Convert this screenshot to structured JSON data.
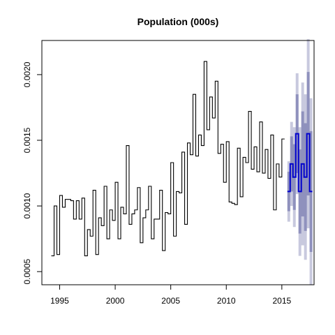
{
  "chart_data": {
    "type": "line",
    "title": "Population (000s)",
    "xlabel": "",
    "ylabel": "",
    "xlim": [
      1993.4,
      2017.9
    ],
    "ylim": [
      0.0004,
      0.00226
    ],
    "x_ticks": [
      1995,
      2000,
      2005,
      2010,
      2015
    ],
    "x_tick_labels": [
      "1995",
      "2000",
      "2005",
      "2010",
      "2015"
    ],
    "y_ticks": [
      0.0005,
      0.001,
      0.0015,
      0.002
    ],
    "y_tick_labels": [
      "0.0005",
      "0.0010",
      "0.0015",
      "0.0020"
    ],
    "grid": false,
    "legend": "none",
    "colors": {
      "history": "#000000",
      "forecast": "#0000cd",
      "band80": "#8f91bd",
      "band95": "#c8c9de"
    },
    "history": {
      "start_year": 1994.25,
      "step_years": 0.25,
      "values": [
        0.00062,
        0.001,
        0.00063,
        0.00108,
        0.00099,
        0.00105,
        0.00105,
        0.00104,
        0.0009,
        0.00104,
        0.0009,
        0.00106,
        0.00062,
        0.00082,
        0.00077,
        0.00112,
        0.00063,
        0.00091,
        0.00085,
        0.00115,
        0.00075,
        0.00097,
        0.00089,
        0.00118,
        0.00075,
        0.00099,
        0.00094,
        0.00146,
        0.00086,
        0.00094,
        0.00097,
        0.00114,
        0.00072,
        0.00091,
        0.00097,
        0.00115,
        0.00075,
        0.0009,
        0.0009,
        0.00112,
        0.00066,
        0.00095,
        0.00094,
        0.00133,
        0.00077,
        0.00111,
        0.0011,
        0.00141,
        0.00086,
        0.00148,
        0.00139,
        0.00185,
        0.00138,
        0.00154,
        0.00146,
        0.0021,
        0.00158,
        0.00183,
        0.00167,
        0.00195,
        0.0014,
        0.00147,
        0.00118,
        0.00149,
        0.00103,
        0.00102,
        0.00101,
        0.00144,
        0.00107,
        0.00137,
        0.00133,
        0.00172,
        0.00128,
        0.00145,
        0.00126,
        0.00164,
        0.00125,
        0.00143,
        0.00121,
        0.00154,
        0.00097,
        0.00132,
        0.00122,
        0.00151
      ]
    },
    "forecast": {
      "start_year": 2015.5,
      "step_years": 0.25,
      "values": [
        0.00111,
        0.00132,
        0.00122,
        0.00155,
        0.00111,
        0.00132,
        0.00122,
        0.00155,
        0.00111
      ],
      "lower80": [
        0.00096,
        0.00111,
        0.00097,
        0.00125,
        0.00079,
        0.00092,
        0.00081,
        0.00108,
        0.00065
      ],
      "upper80": [
        0.00126,
        0.00153,
        0.00147,
        0.00185,
        0.00143,
        0.00172,
        0.00163,
        0.00202,
        0.00157
      ],
      "lower95": [
        0.00088,
        0.001,
        0.00084,
        0.00109,
        0.00062,
        0.0007,
        0.00059,
        0.00083,
        0.0004
      ],
      "upper95": [
        0.00134,
        0.00164,
        0.0016,
        0.00201,
        0.0016,
        0.00194,
        0.00185,
        0.00227,
        0.00182
      ]
    }
  }
}
